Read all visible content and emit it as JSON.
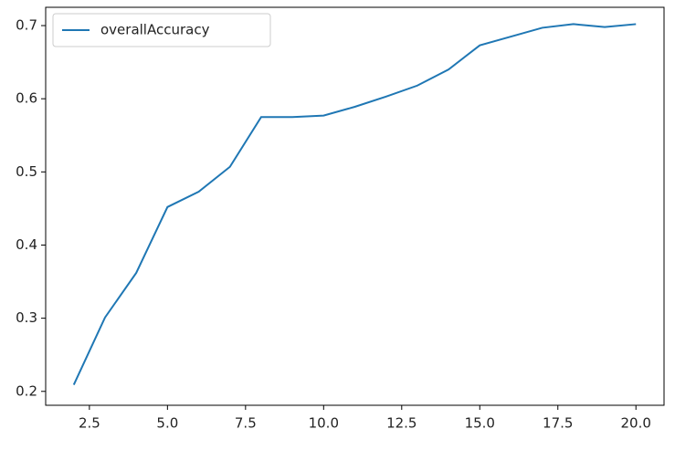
{
  "chart_data": {
    "type": "line",
    "x": [
      2,
      3,
      4,
      5,
      6,
      7,
      8,
      9,
      10,
      11,
      12,
      13,
      14,
      15,
      16,
      17,
      18,
      19,
      20
    ],
    "series": [
      {
        "name": "overallAccuracy",
        "color": "#1f77b4",
        "values": [
          0.209,
          0.301,
          0.362,
          0.452,
          0.473,
          0.507,
          0.575,
          0.575,
          0.577,
          0.589,
          0.603,
          0.618,
          0.64,
          0.673,
          0.685,
          0.697,
          0.702,
          0.698,
          0.702
        ]
      }
    ],
    "xlim": [
      1.1,
      20.9
    ],
    "xticks": [
      2.5,
      {
        "value": 5,
        "label": "5.0"
      },
      7.5,
      {
        "value": 10,
        "label": "10.0"
      },
      12.5,
      {
        "value": 15,
        "label": "15.0"
      },
      17.5,
      {
        "value": 20,
        "label": "20.0"
      }
    ],
    "ylim": [
      0.181,
      0.725
    ],
    "yticks": [
      0.2,
      0.3,
      0.4,
      0.5,
      0.6,
      0.7
    ],
    "grid": false,
    "legend": "upper left"
  }
}
